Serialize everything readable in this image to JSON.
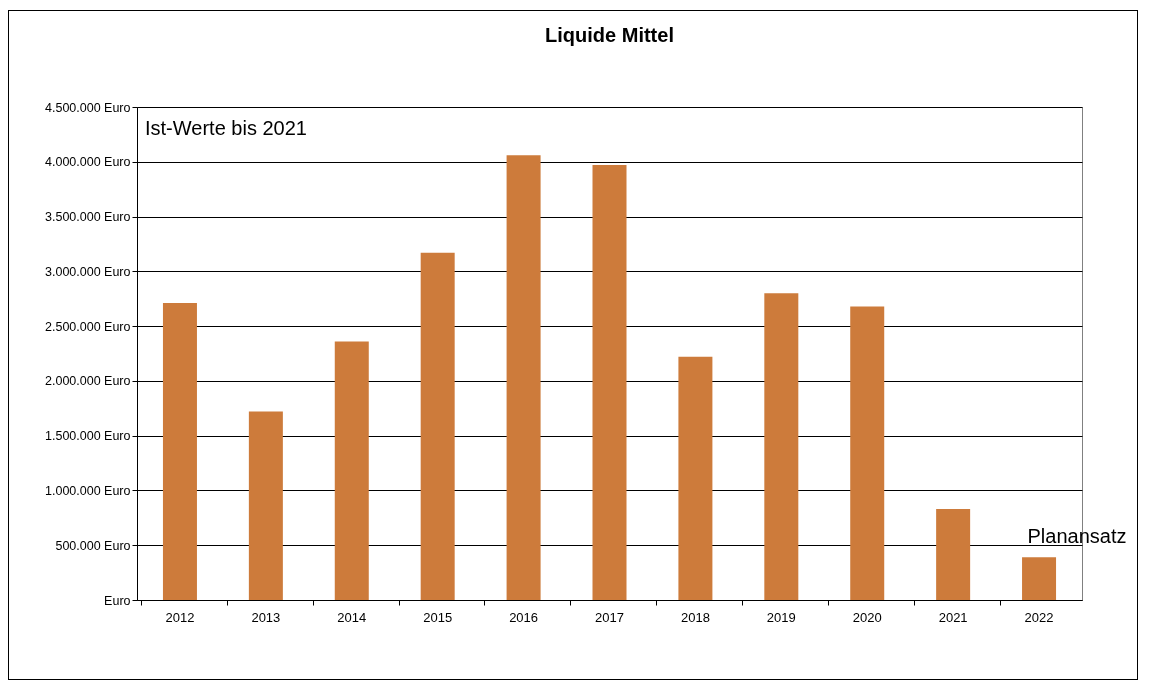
{
  "chart_data": {
    "type": "bar",
    "title": "Liquide Mittel",
    "categories": [
      "2012",
      "2013",
      "2014",
      "2015",
      "2016",
      "2017",
      "2018",
      "2019",
      "2020",
      "2021",
      "2022"
    ],
    "values": [
      2710000,
      1720000,
      2360000,
      3170000,
      4060000,
      3970000,
      2220000,
      2800000,
      2680000,
      830000,
      390000
    ],
    "color": "#cd7b3b",
    "ylim": [
      0,
      4500000
    ],
    "yticks": [
      {
        "value": 0,
        "label": "Euro"
      },
      {
        "value": 500000,
        "label": "500.000 Euro"
      },
      {
        "value": 1000000,
        "label": "1.000.000 Euro"
      },
      {
        "value": 1500000,
        "label": "1.500.000 Euro"
      },
      {
        "value": 2000000,
        "label": "2.000.000 Euro"
      },
      {
        "value": 2500000,
        "label": "2.500.000 Euro"
      },
      {
        "value": 3000000,
        "label": "3.000.000 Euro"
      },
      {
        "value": 3500000,
        "label": "3.500.000 Euro"
      },
      {
        "value": 4000000,
        "label": "4.000.000 Euro"
      },
      {
        "value": 4500000,
        "label": "4.500.000 Euro"
      }
    ],
    "grid": "y",
    "annotations": [
      "Ist-Werte bis 2021",
      "Planansatz"
    ]
  }
}
